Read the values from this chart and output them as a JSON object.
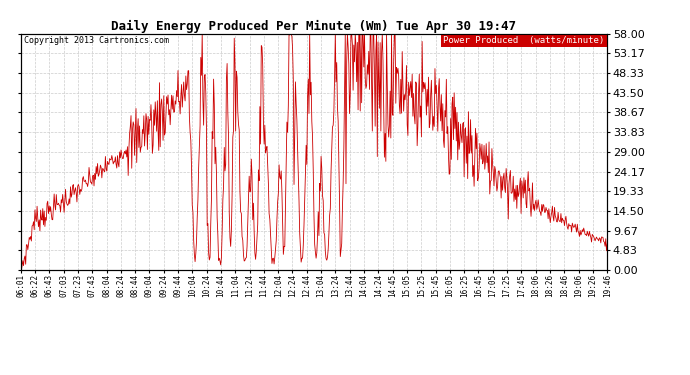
{
  "title": "Daily Energy Produced Per Minute (Wm) Tue Apr 30 19:47",
  "copyright": "Copyright 2013 Cartronics.com",
  "legend_label": "Power Produced  (watts/minute)",
  "legend_bg": "#cc0000",
  "legend_fg": "#ffffff",
  "line_color": "#cc0000",
  "bg_color": "#ffffff",
  "grid_color": "#cccccc",
  "title_fontsize": 9,
  "copyright_fontsize": 6,
  "legend_fontsize": 6.5,
  "ytick_fontsize": 8,
  "xtick_fontsize": 5.5,
  "yticks": [
    0.0,
    4.83,
    9.67,
    14.5,
    19.33,
    24.17,
    29.0,
    33.83,
    38.67,
    43.5,
    48.33,
    53.17,
    58.0
  ],
  "ymax": 58.0,
  "ymin": 0.0,
  "xtick_labels": [
    "06:01",
    "06:22",
    "06:43",
    "07:03",
    "07:23",
    "07:43",
    "08:04",
    "08:24",
    "08:44",
    "09:04",
    "09:24",
    "09:44",
    "10:04",
    "10:24",
    "10:44",
    "11:04",
    "11:24",
    "11:44",
    "12:04",
    "12:24",
    "12:44",
    "13:04",
    "13:24",
    "13:44",
    "14:04",
    "14:24",
    "14:45",
    "15:05",
    "15:25",
    "15:45",
    "16:05",
    "16:25",
    "16:45",
    "17:05",
    "17:25",
    "17:45",
    "18:06",
    "18:26",
    "18:46",
    "19:06",
    "19:26",
    "19:46"
  ]
}
